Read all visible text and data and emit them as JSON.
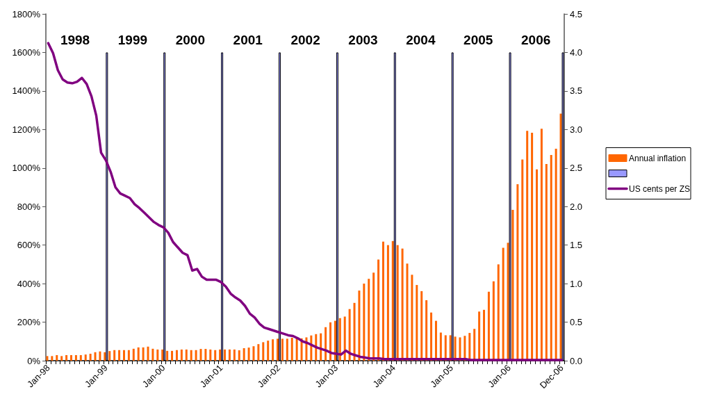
{
  "chart_data": {
    "type": "bar",
    "categories": [
      "Jan-98",
      null,
      null,
      null,
      null,
      null,
      null,
      null,
      null,
      null,
      null,
      null,
      "Jan-99",
      null,
      null,
      null,
      null,
      null,
      null,
      null,
      null,
      null,
      null,
      null,
      "Jan-00",
      null,
      null,
      null,
      null,
      null,
      null,
      null,
      null,
      null,
      null,
      null,
      "Jan-01",
      null,
      null,
      null,
      null,
      null,
      null,
      null,
      null,
      null,
      null,
      null,
      "Jan-02",
      null,
      null,
      null,
      null,
      null,
      null,
      null,
      null,
      null,
      null,
      null,
      "Jan-03",
      null,
      null,
      null,
      null,
      null,
      null,
      null,
      null,
      null,
      null,
      null,
      "Jan-04",
      null,
      null,
      null,
      null,
      null,
      null,
      null,
      null,
      null,
      null,
      null,
      "Jan-05",
      null,
      null,
      null,
      null,
      null,
      null,
      null,
      null,
      null,
      null,
      null,
      "Jan-06",
      null,
      null,
      null,
      null,
      null,
      null,
      null,
      null,
      null,
      null,
      "Dec-06"
    ],
    "series": [
      {
        "name": "Annual inflation",
        "color": "#ff6600",
        "values": [
          24,
          24,
          29,
          24,
          29,
          29,
          29,
          29,
          32,
          36,
          44,
          48,
          44,
          50,
          55,
          55,
          55,
          55,
          62,
          69,
          69,
          73,
          62,
          58,
          58,
          51,
          51,
          55,
          58,
          58,
          55,
          55,
          61,
          61,
          58,
          55,
          58,
          58,
          58,
          58,
          54,
          65,
          68,
          75,
          86,
          96,
          104,
          111,
          114,
          114,
          114,
          119,
          119,
          116,
          121,
          131,
          138,
          142,
          174,
          199,
          207,
          221,
          229,
          268,
          300,
          364,
          400,
          425,
          457,
          525,
          618,
          600,
          621,
          600,
          582,
          504,
          446,
          393,
          361,
          314,
          250,
          207,
          146,
          132,
          132,
          125,
          121,
          129,
          144,
          165,
          255,
          264,
          358,
          412,
          500,
          586,
          612,
          783,
          916,
          1044,
          1193,
          1183,
          993,
          1204,
          1021,
          1068,
          1100,
          1282
        ]
      },
      {
        "color": "#9999ff",
        "values": [
          null,
          null,
          null,
          null,
          null,
          null,
          null,
          null,
          null,
          null,
          null,
          null,
          1600,
          null,
          null,
          null,
          null,
          null,
          null,
          null,
          null,
          null,
          null,
          null,
          1600,
          null,
          null,
          null,
          null,
          null,
          null,
          null,
          null,
          null,
          null,
          null,
          1600,
          null,
          null,
          null,
          null,
          null,
          null,
          null,
          null,
          null,
          null,
          null,
          1600,
          null,
          null,
          null,
          null,
          null,
          null,
          null,
          null,
          null,
          null,
          null,
          1600,
          null,
          null,
          null,
          null,
          null,
          null,
          null,
          null,
          null,
          null,
          null,
          1600,
          null,
          null,
          null,
          null,
          null,
          null,
          null,
          null,
          null,
          null,
          null,
          1600,
          null,
          null,
          null,
          null,
          null,
          null,
          null,
          null,
          null,
          null,
          null,
          1600,
          null,
          null,
          null,
          null,
          null,
          null,
          null,
          null,
          null,
          null,
          1600
        ]
      },
      {
        "name": "US cents per ZS",
        "type": "line",
        "axis": "y2",
        "color": "#800080",
        "values": [
          4.12,
          3.99,
          3.77,
          3.65,
          3.61,
          3.6,
          3.62,
          3.67,
          3.59,
          3.43,
          3.18,
          2.7,
          2.6,
          2.45,
          2.25,
          2.17,
          2.14,
          2.11,
          2.03,
          1.98,
          1.92,
          1.86,
          1.8,
          1.76,
          1.73,
          1.66,
          1.54,
          1.47,
          1.4,
          1.37,
          1.17,
          1.19,
          1.09,
          1.05,
          1.05,
          1.05,
          1.02,
          0.96,
          0.87,
          0.82,
          0.78,
          0.71,
          0.61,
          0.56,
          0.48,
          0.43,
          0.41,
          0.39,
          0.37,
          0.35,
          0.33,
          0.32,
          0.29,
          0.25,
          0.23,
          0.2,
          0.17,
          0.15,
          0.13,
          0.1,
          0.09,
          0.08,
          0.13,
          0.09,
          0.07,
          0.05,
          0.04,
          0.03,
          0.03,
          0.03,
          0.02,
          0.02,
          0.02,
          0.02,
          0.02,
          0.02,
          0.02,
          0.02,
          0.02,
          0.02,
          0.02,
          0.02,
          0.02,
          0.02,
          0.02,
          0.02,
          0.02,
          0.02,
          0.01,
          0.01,
          0.01,
          0.01,
          0.01,
          0.01,
          0.01,
          0.01,
          0.01,
          0.01,
          0.01,
          0.01,
          0.01,
          0.01,
          0.01,
          0.01,
          0.01,
          0.01,
          0.01,
          0.01
        ]
      }
    ],
    "ylim": [
      0,
      1800
    ],
    "yticks": [
      {
        "value": 0,
        "label": "0%"
      },
      {
        "value": 200,
        "label": "200%"
      },
      {
        "value": 400,
        "label": "400%"
      },
      {
        "value": 600,
        "label": "600%"
      },
      {
        "value": 800,
        "label": "800%"
      },
      {
        "value": 1000,
        "label": "1000%"
      },
      {
        "value": 1200,
        "label": "1200%"
      },
      {
        "value": 1400,
        "label": "1400%"
      },
      {
        "value": 1600,
        "label": "1600%"
      },
      {
        "value": 1800,
        "label": "1800%"
      }
    ],
    "y2lim": [
      0,
      4.5
    ],
    "y2ticks": [
      {
        "value": 0,
        "label": "0.0"
      },
      0.5,
      {
        "value": 1,
        "label": "1.0"
      },
      1.5,
      {
        "value": 2,
        "label": "2.0"
      },
      2.5,
      {
        "value": 3,
        "label": "3.0"
      },
      3.5,
      {
        "value": 4,
        "label": "4.0"
      },
      4.5
    ],
    "annotations": [
      "1998",
      "1999",
      "2000",
      "2001",
      "2002",
      "2003",
      "2004",
      "2005",
      "2006"
    ],
    "legend": "right",
    "marker": "none",
    "line_style": "solid",
    "grid": false
  }
}
